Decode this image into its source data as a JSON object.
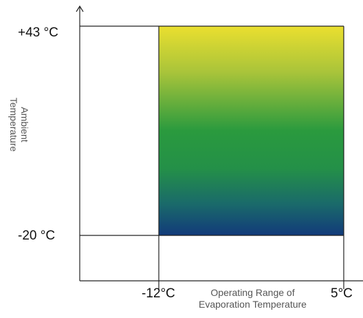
{
  "y_axis": {
    "label_line1": "Ambient",
    "label_line2": "Temperature",
    "tick_top": "+43 °C",
    "tick_bottom": "-20 °C"
  },
  "x_axis": {
    "label_line1": "Operating Range of",
    "label_line2": "Evaporation Temperature",
    "tick_left": "-12°C",
    "tick_right": "5°C"
  },
  "region": {
    "gradient_top": "#eadf2f",
    "gradient_mid": "#2a9a3e",
    "gradient_bottom": "#123a7a"
  }
}
